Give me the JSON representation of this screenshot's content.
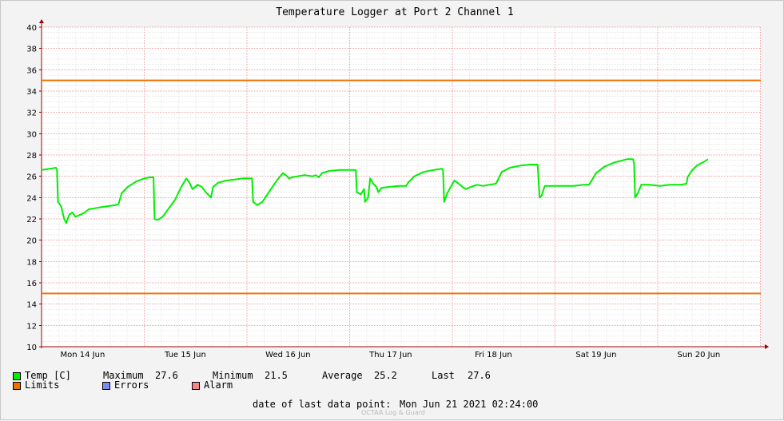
{
  "chart_data": {
    "type": "line",
    "title": "Temperature Logger at Port 2 Channel 1",
    "y_ticks": [
      "10",
      "12",
      "14",
      "16",
      "18",
      "20",
      "22",
      "24",
      "26",
      "28",
      "30",
      "32",
      "34",
      "36",
      "38",
      "40"
    ],
    "ylim": [
      10,
      40
    ],
    "x_labels": [
      "Mon 14 Jun",
      "Tue 15 Jun",
      "Wed 16 Jun",
      "Thu 17 Jun",
      "Fri 18 Jun",
      "Sat 19 Jun",
      "Sun 20 Jun"
    ],
    "grid": true,
    "series": [
      {
        "name": "Temp [C]",
        "color": "#00ee00",
        "points": [
          [
            0.0,
            26.6
          ],
          [
            0.08,
            26.7
          ],
          [
            0.14,
            26.8
          ],
          [
            0.15,
            26.6
          ],
          [
            0.16,
            23.6
          ],
          [
            0.19,
            23.2
          ],
          [
            0.22,
            22.0
          ],
          [
            0.24,
            21.6
          ],
          [
            0.27,
            22.4
          ],
          [
            0.3,
            22.6
          ],
          [
            0.33,
            22.2
          ],
          [
            0.38,
            22.4
          ],
          [
            0.42,
            22.6
          ],
          [
            0.46,
            22.9
          ],
          [
            0.52,
            23.0
          ],
          [
            0.58,
            23.1
          ],
          [
            0.65,
            23.2
          ],
          [
            0.72,
            23.3
          ],
          [
            0.75,
            23.4
          ],
          [
            0.78,
            24.4
          ],
          [
            0.84,
            25.0
          ],
          [
            0.92,
            25.5
          ],
          [
            1.0,
            25.8
          ],
          [
            1.06,
            25.9
          ],
          [
            1.09,
            25.9
          ],
          [
            1.1,
            22.0
          ],
          [
            1.13,
            21.9
          ],
          [
            1.18,
            22.2
          ],
          [
            1.24,
            23.0
          ],
          [
            1.3,
            23.8
          ],
          [
            1.36,
            25.0
          ],
          [
            1.41,
            25.8
          ],
          [
            1.44,
            25.4
          ],
          [
            1.47,
            24.8
          ],
          [
            1.52,
            25.2
          ],
          [
            1.56,
            25.0
          ],
          [
            1.6,
            24.5
          ],
          [
            1.63,
            24.2
          ],
          [
            1.65,
            24.0
          ],
          [
            1.67,
            25.0
          ],
          [
            1.72,
            25.4
          ],
          [
            1.8,
            25.6
          ],
          [
            1.88,
            25.7
          ],
          [
            1.96,
            25.8
          ],
          [
            2.05,
            25.8
          ],
          [
            2.06,
            23.6
          ],
          [
            2.1,
            23.3
          ],
          [
            2.15,
            23.6
          ],
          [
            2.22,
            24.6
          ],
          [
            2.29,
            25.6
          ],
          [
            2.35,
            26.3
          ],
          [
            2.38,
            26.1
          ],
          [
            2.41,
            25.8
          ],
          [
            2.44,
            25.9
          ],
          [
            2.49,
            26.0
          ],
          [
            2.56,
            26.1
          ],
          [
            2.64,
            26.0
          ],
          [
            2.67,
            26.1
          ],
          [
            2.7,
            25.9
          ],
          [
            2.73,
            26.3
          ],
          [
            2.8,
            26.5
          ],
          [
            2.9,
            26.6
          ],
          [
            3.0,
            26.6
          ],
          [
            3.06,
            26.6
          ],
          [
            3.07,
            24.5
          ],
          [
            3.11,
            24.3
          ],
          [
            3.14,
            24.8
          ],
          [
            3.15,
            23.6
          ],
          [
            3.18,
            24.0
          ],
          [
            3.2,
            25.8
          ],
          [
            3.23,
            25.3
          ],
          [
            3.26,
            25.0
          ],
          [
            3.28,
            24.5
          ],
          [
            3.31,
            24.9
          ],
          [
            3.38,
            25.0
          ],
          [
            3.48,
            25.1
          ],
          [
            3.55,
            25.1
          ],
          [
            3.57,
            25.4
          ],
          [
            3.63,
            26.0
          ],
          [
            3.72,
            26.4
          ],
          [
            3.82,
            26.6
          ],
          [
            3.9,
            26.7
          ],
          [
            3.91,
            26.5
          ],
          [
            3.92,
            23.6
          ],
          [
            3.95,
            24.4
          ],
          [
            3.99,
            25.1
          ],
          [
            4.02,
            25.6
          ],
          [
            4.05,
            25.4
          ],
          [
            4.1,
            25.0
          ],
          [
            4.13,
            24.8
          ],
          [
            4.18,
            25.0
          ],
          [
            4.24,
            25.2
          ],
          [
            4.3,
            25.1
          ],
          [
            4.36,
            25.2
          ],
          [
            4.42,
            25.3
          ],
          [
            4.43,
            25.4
          ],
          [
            4.48,
            26.4
          ],
          [
            4.56,
            26.8
          ],
          [
            4.66,
            27.0
          ],
          [
            4.76,
            27.1
          ],
          [
            4.83,
            27.1
          ],
          [
            4.85,
            24.0
          ],
          [
            4.87,
            24.2
          ],
          [
            4.9,
            25.1
          ],
          [
            4.98,
            25.1
          ],
          [
            5.08,
            25.1
          ],
          [
            5.18,
            25.1
          ],
          [
            5.28,
            25.2
          ],
          [
            5.33,
            25.2
          ],
          [
            5.35,
            25.5
          ],
          [
            5.4,
            26.3
          ],
          [
            5.48,
            26.9
          ],
          [
            5.58,
            27.3
          ],
          [
            5.7,
            27.6
          ],
          [
            5.76,
            27.6
          ],
          [
            5.77,
            27.2
          ],
          [
            5.78,
            24.0
          ],
          [
            5.81,
            24.5
          ],
          [
            5.84,
            25.2
          ],
          [
            5.92,
            25.2
          ],
          [
            6.02,
            25.1
          ],
          [
            6.12,
            25.2
          ],
          [
            6.22,
            25.2
          ],
          [
            6.28,
            25.3
          ],
          [
            6.29,
            25.9
          ],
          [
            6.33,
            26.5
          ],
          [
            6.38,
            27.0
          ],
          [
            6.44,
            27.3
          ],
          [
            6.49,
            27.6
          ]
        ]
      },
      {
        "name": "Limits",
        "color": "#ee7000",
        "lines": [
          35,
          15
        ]
      }
    ],
    "legend": {
      "rows": [
        {
          "entries": [
            {
              "name": "Temp [C]",
              "color": "#00ee00"
            }
          ],
          "stats": [
            {
              "label": "Maximum",
              "value": "27.6"
            },
            {
              "label": "Minimum",
              "value": "21.5"
            },
            {
              "label": "Average",
              "value": "25.2"
            },
            {
              "label": "Last",
              "value": "27.6"
            }
          ]
        }
      ],
      "extra": [
        {
          "name": "Limits",
          "color": "#ee7000"
        },
        {
          "name": "Errors",
          "color": "#7e88f7"
        },
        {
          "name": "Alarm",
          "color": "#f7868a"
        }
      ]
    },
    "last_point_label": "date of last data point:",
    "last_point_value": "Mon Jun 21 2021 02:24:00",
    "footer": "OCTAA Log & Guard"
  }
}
